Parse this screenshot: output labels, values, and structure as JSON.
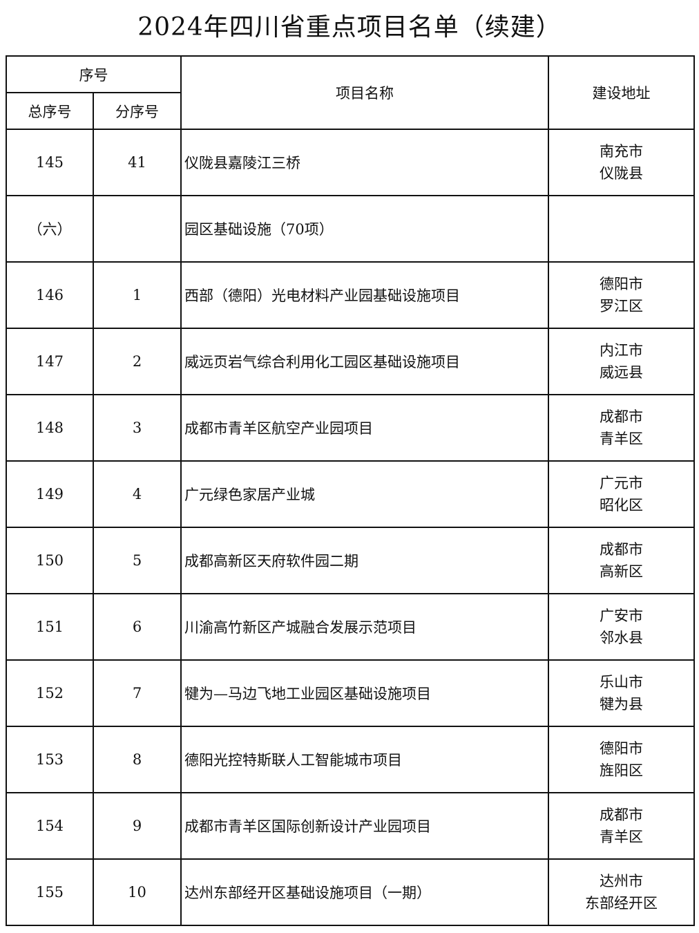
{
  "title": "2024年四川省重点项目名单（续建）",
  "header": {
    "seq_group": "序号",
    "total_seq": "总序号",
    "sub_seq": "分序号",
    "project_name": "项目名称",
    "address": "建设地址"
  },
  "rows": [
    {
      "total": "145",
      "sub": "41",
      "name": "仪陇县嘉陵江三桥",
      "addr": [
        "南充市",
        "仪陇县"
      ]
    },
    {
      "total": "（六）",
      "sub": "",
      "name": "园区基础设施（70项）",
      "addr": []
    },
    {
      "total": "146",
      "sub": "1",
      "name": "西部（德阳）光电材料产业园基础设施项目",
      "addr": [
        "德阳市",
        "罗江区"
      ]
    },
    {
      "total": "147",
      "sub": "2",
      "name": "威远页岩气综合利用化工园区基础设施项目",
      "addr": [
        "内江市",
        "威远县"
      ]
    },
    {
      "total": "148",
      "sub": "3",
      "name": "成都市青羊区航空产业园项目",
      "addr": [
        "成都市",
        "青羊区"
      ]
    },
    {
      "total": "149",
      "sub": "4",
      "name": "广元绿色家居产业城",
      "addr": [
        "广元市",
        "昭化区"
      ]
    },
    {
      "total": "150",
      "sub": "5",
      "name": "成都高新区天府软件园二期",
      "addr": [
        "成都市",
        "高新区"
      ]
    },
    {
      "total": "151",
      "sub": "6",
      "name": "川渝高竹新区产城融合发展示范项目",
      "addr": [
        "广安市",
        "邻水县"
      ]
    },
    {
      "total": "152",
      "sub": "7",
      "name": "犍为—马边飞地工业园区基础设施项目",
      "addr": [
        "乐山市",
        "犍为县"
      ]
    },
    {
      "total": "153",
      "sub": "8",
      "name": "德阳光控特斯联人工智能城市项目",
      "addr": [
        "德阳市",
        "旌阳区"
      ]
    },
    {
      "total": "154",
      "sub": "9",
      "name": "成都市青羊区国际创新设计产业园项目",
      "addr": [
        "成都市",
        "青羊区"
      ]
    },
    {
      "total": "155",
      "sub": "10",
      "name": "达州东部经开区基础设施项目（一期）",
      "addr": [
        "达州市",
        "东部经开区"
      ]
    }
  ]
}
